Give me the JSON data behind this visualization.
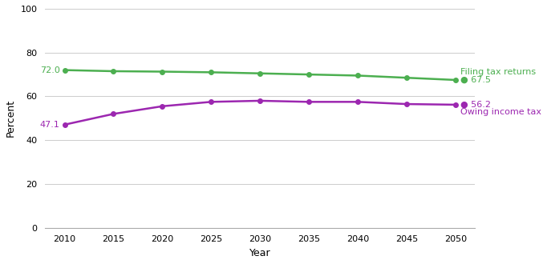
{
  "years": [
    2010,
    2015,
    2020,
    2025,
    2030,
    2035,
    2040,
    2045,
    2050
  ],
  "filing_tax_returns": [
    72.0,
    71.5,
    71.3,
    71.0,
    70.5,
    70.0,
    69.5,
    68.5,
    67.5
  ],
  "owing_income_tax": [
    47.1,
    52.0,
    55.5,
    57.5,
    58.0,
    57.5,
    57.5,
    56.5,
    56.2
  ],
  "filing_color": "#4caf50",
  "owing_color": "#9c27b0",
  "filing_label": "Filing tax returns",
  "owing_label": "Owing income tax",
  "xlabel": "Year",
  "ylabel": "Percent",
  "ylim": [
    0,
    100
  ],
  "xlim": [
    2008,
    2052
  ],
  "yticks": [
    0,
    20,
    40,
    60,
    80,
    100
  ],
  "xticks": [
    2010,
    2015,
    2020,
    2025,
    2030,
    2035,
    2040,
    2045,
    2050
  ],
  "filing_start_label": "72.0",
  "filing_end_label": "67.5",
  "owing_start_label": "47.1",
  "owing_end_label": "56.2",
  "background_color": "#ffffff",
  "grid_color": "#cccccc"
}
